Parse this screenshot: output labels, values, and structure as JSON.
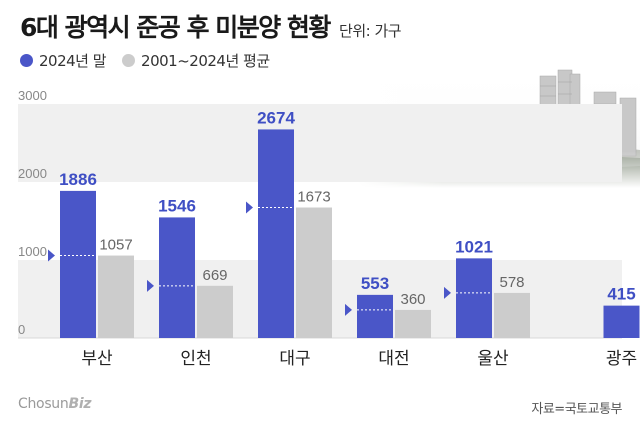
{
  "header": {
    "title": "6대 광역시 준공 후 미분양 현황",
    "unit": "단위: 가구"
  },
  "legend": {
    "items": [
      {
        "label": "2024년 말",
        "color": "#4a56c8"
      },
      {
        "label": "2001~2024년 평균",
        "color": "#cccccc"
      }
    ]
  },
  "chart_data": {
    "type": "bar",
    "title": "6대 광역시 준공 후 미분양 현황",
    "unit": "단위: 가구",
    "categories": [
      "부산",
      "인천",
      "대구",
      "대전",
      "울산",
      "광주"
    ],
    "series": [
      {
        "name": "2024년 말",
        "color": "#4a56c8",
        "values": [
          1886,
          1546,
          2674,
          553,
          1021,
          415
        ]
      },
      {
        "name": "2001~2024년 평균",
        "color": "#cccccc",
        "values": [
          1057,
          669,
          1673,
          360,
          578,
          null
        ]
      }
    ],
    "ylim": [
      0,
      3000
    ],
    "yticks": [
      0,
      1000,
      2000,
      3000
    ],
    "grid": "alternating bands",
    "legend_position": "top-left"
  },
  "footer": {
    "logo_main": "Chosun",
    "logo_biz": "Biz",
    "source": "자료=국토교통부"
  }
}
